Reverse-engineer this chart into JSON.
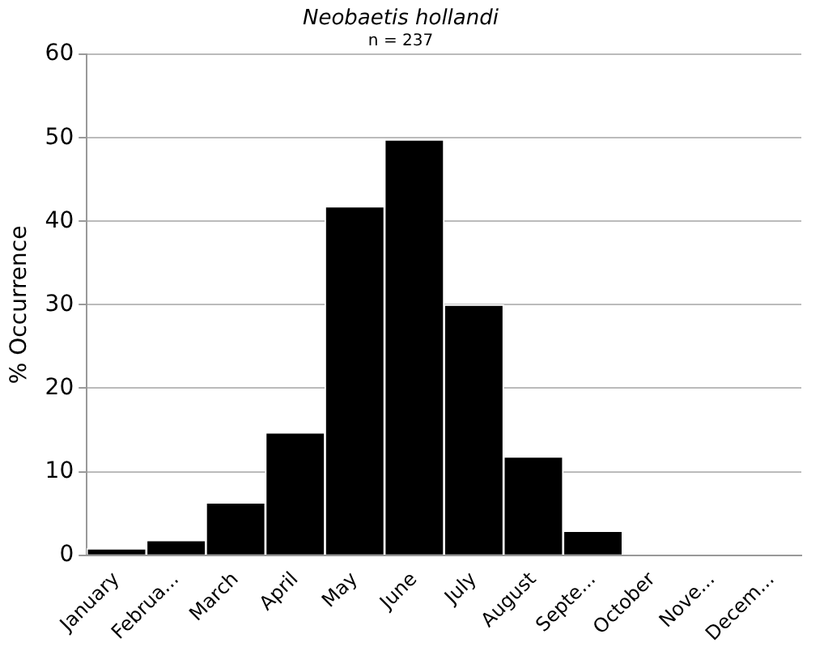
{
  "chart_data": {
    "type": "bar",
    "title": "Neobaetis hollandi",
    "subtitle": "n = 237",
    "ylabel": "% Occurrence",
    "categories": [
      "January",
      "Februa...",
      "March",
      "April",
      "May",
      "June",
      "July",
      "August",
      "Septe...",
      "October",
      "Nove...",
      "Decem..."
    ],
    "values": [
      0.8,
      1.8,
      6.3,
      14.7,
      41.8,
      49.8,
      30,
      11.8,
      2.9,
      0,
      0,
      0
    ],
    "color": "#000000",
    "ylim": [
      0,
      60
    ],
    "yticks": [
      0,
      10,
      20,
      30,
      40,
      50,
      60
    ],
    "grid": "y",
    "legend": false
  }
}
